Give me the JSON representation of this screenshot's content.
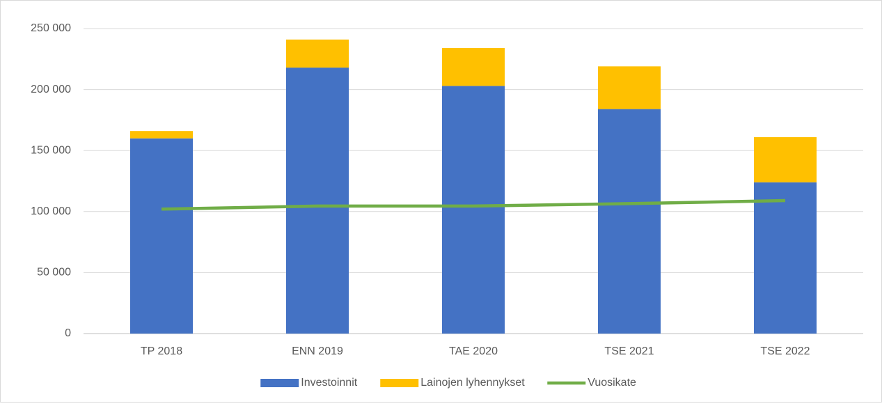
{
  "chart_data": {
    "type": "bar",
    "categories": [
      "TP 2018",
      "ENN 2019",
      "TAE 2020",
      "TSE 2021",
      "TSE 2022"
    ],
    "stacked": true,
    "series": [
      {
        "name": "Investoinnit",
        "color": "#4472c4",
        "values": [
          160000,
          218000,
          203000,
          184000,
          124000
        ]
      },
      {
        "name": "Lainojen lyhennykset",
        "color": "#ffc000",
        "values": [
          6000,
          23000,
          31000,
          35000,
          37000
        ]
      },
      {
        "name": "Vuosikate",
        "color": "#70ad47",
        "type": "line",
        "values": [
          102000,
          104500,
          104500,
          106500,
          109000
        ]
      }
    ],
    "ylim": [
      0,
      250000
    ],
    "yticks": [
      0,
      {
        "value": 50000,
        "label": "50 000"
      },
      {
        "value": 100000,
        "label": "100 000"
      },
      {
        "value": 150000,
        "label": "150 000"
      },
      {
        "value": 200000,
        "label": "200 000"
      },
      {
        "value": 250000,
        "label": "250 000"
      }
    ],
    "grid": true,
    "legend": "bottom"
  }
}
